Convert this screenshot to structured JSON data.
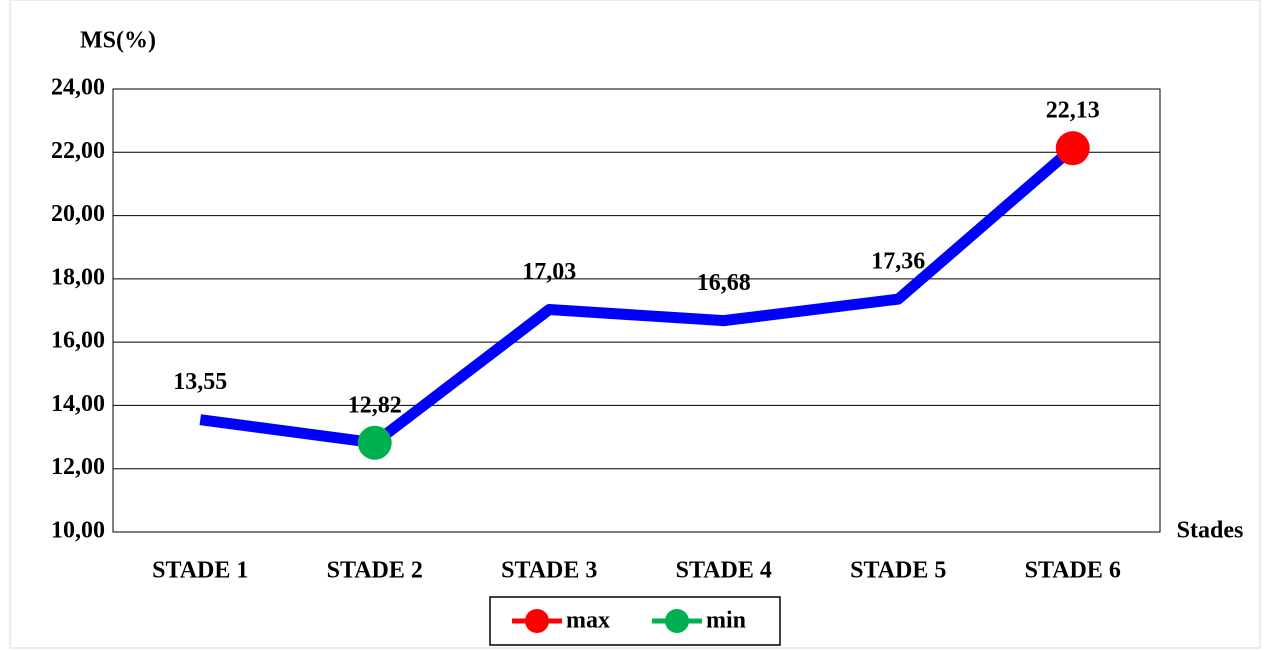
{
  "chart_data": {
    "type": "line",
    "y_label": "MS(%)",
    "x_label": "Stades",
    "categories": [
      "STADE 1",
      "STADE 2",
      "STADE 3",
      "STADE 4",
      "STADE 5",
      "STADE 6"
    ],
    "series": [
      {
        "color": "#0000ff",
        "values": [
          13.55,
          12.82,
          17.03,
          16.68,
          17.36,
          22.13
        ],
        "value_labels": [
          "13,55",
          "12,82",
          "17,03",
          "16,68",
          "17,36",
          "22,13"
        ]
      },
      {
        "name": "max",
        "color": "#ff0000",
        "values": [
          null,
          null,
          null,
          null,
          null,
          22.13
        ]
      },
      {
        "name": "min",
        "color": "#00b050",
        "values": [
          null,
          12.82,
          null,
          null,
          null,
          null
        ]
      }
    ],
    "ylim": [
      10,
      24
    ],
    "yticks": [
      {
        "value": 10,
        "label": "10,00"
      },
      {
        "value": 12,
        "label": "12,00"
      },
      {
        "value": 14,
        "label": "14,00"
      },
      {
        "value": 16,
        "label": "16,00"
      },
      {
        "value": 18,
        "label": "18,00"
      },
      {
        "value": 20,
        "label": "20,00"
      },
      {
        "value": 22,
        "label": "22,00"
      },
      {
        "value": 24,
        "label": "24,00"
      }
    ],
    "grid": true,
    "legend": "bottom"
  }
}
